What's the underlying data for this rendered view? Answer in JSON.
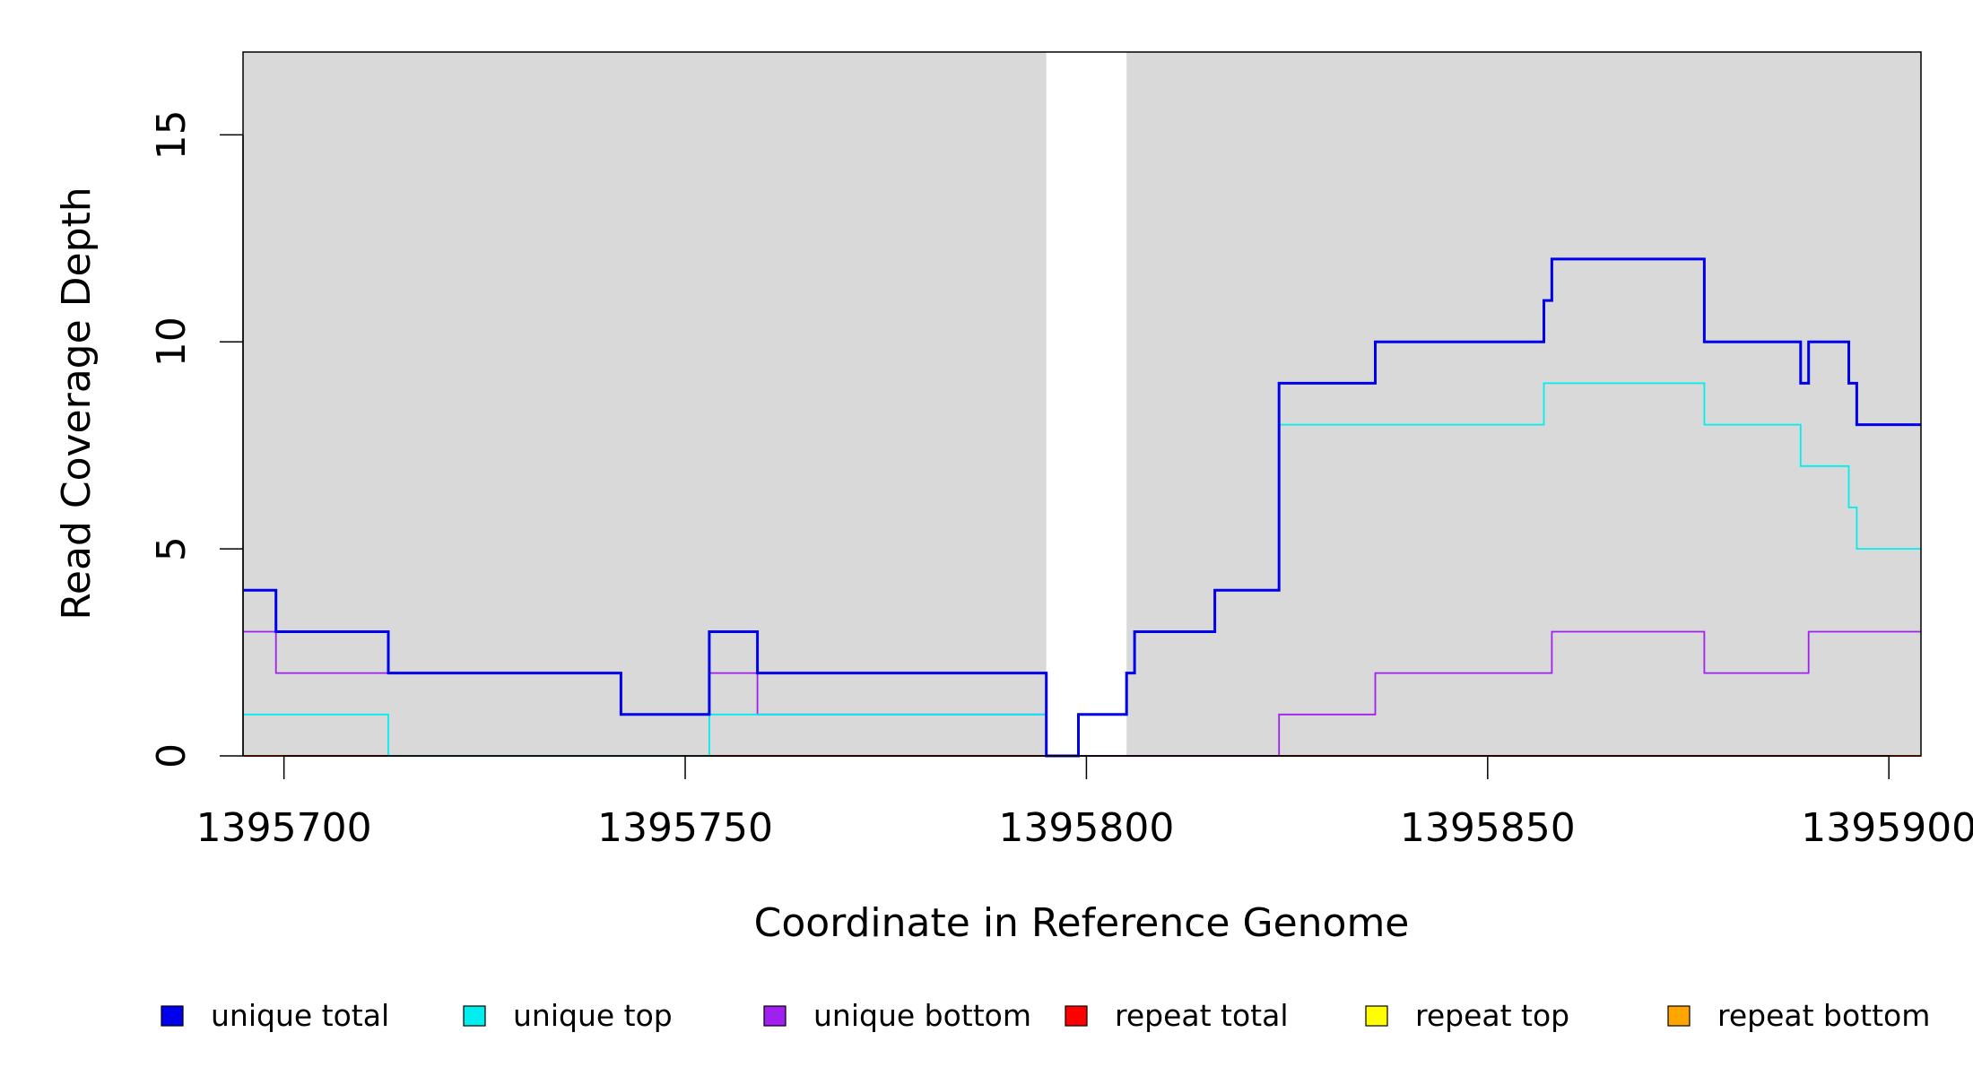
{
  "chart_data": {
    "type": "line",
    "step": true,
    "xlabel": "Coordinate in Reference Genome",
    "ylabel": "Read Coverage Depth",
    "xlim": [
      1395694.9,
      1395904
    ],
    "ylim": [
      0,
      17
    ],
    "x_ticks": [
      1395700,
      1395750,
      1395800,
      1395850,
      1395900
    ],
    "y_ticks": [
      0,
      5,
      10,
      15
    ],
    "grid": false,
    "background_color": "#d9d9d9",
    "unshaded_region": {
      "x_start": 1395795,
      "x_end": 1395805
    },
    "legend_position": "bottom",
    "series": [
      {
        "name": "unique total",
        "color": "#0000ee",
        "width": 3,
        "points": [
          [
            1395695,
            4
          ],
          [
            1395699,
            3
          ],
          [
            1395713,
            2
          ],
          [
            1395742,
            1
          ],
          [
            1395753,
            3
          ],
          [
            1395759,
            2
          ],
          [
            1395795,
            0
          ],
          [
            1395799,
            1
          ],
          [
            1395805,
            2
          ],
          [
            1395806,
            3
          ],
          [
            1395816,
            4
          ],
          [
            1395824,
            9
          ],
          [
            1395836,
            10
          ],
          [
            1395857,
            11
          ],
          [
            1395858,
            12
          ],
          [
            1395877,
            10
          ],
          [
            1395889,
            9
          ],
          [
            1395890,
            10
          ],
          [
            1395895,
            9
          ],
          [
            1395896,
            8
          ],
          [
            1395904,
            8
          ]
        ]
      },
      {
        "name": "unique top",
        "color": "#00eeee",
        "width": 1.8,
        "points": [
          [
            1395695,
            1
          ],
          [
            1395713,
            0
          ],
          [
            1395753,
            1
          ],
          [
            1395795,
            0
          ],
          [
            1395799,
            1
          ],
          [
            1395805,
            2
          ],
          [
            1395806,
            3
          ],
          [
            1395816,
            4
          ],
          [
            1395824,
            8
          ],
          [
            1395857,
            9
          ],
          [
            1395877,
            8
          ],
          [
            1395889,
            7
          ],
          [
            1395895,
            6
          ],
          [
            1395896,
            5
          ],
          [
            1395904,
            5
          ]
        ]
      },
      {
        "name": "unique bottom",
        "color": "#a020f0",
        "width": 1.8,
        "points": [
          [
            1395695,
            3
          ],
          [
            1395699,
            2
          ],
          [
            1395742,
            1
          ],
          [
            1395753,
            2
          ],
          [
            1395759,
            1
          ],
          [
            1395795,
            0
          ],
          [
            1395824,
            1
          ],
          [
            1395836,
            2
          ],
          [
            1395858,
            3
          ],
          [
            1395877,
            2
          ],
          [
            1395890,
            3
          ],
          [
            1395904,
            3
          ]
        ]
      },
      {
        "name": "repeat total",
        "color": "#ff0000",
        "width": 1.8,
        "points": [
          [
            1395695,
            0
          ],
          [
            1395904,
            0
          ]
        ]
      },
      {
        "name": "repeat top",
        "color": "#ffff00",
        "width": 1.8,
        "points": [
          [
            1395695,
            0
          ],
          [
            1395904,
            0
          ]
        ]
      },
      {
        "name": "repeat bottom",
        "color": "#ffa500",
        "width": 1.8,
        "points": [
          [
            1395695,
            0
          ],
          [
            1395904,
            0
          ]
        ]
      }
    ]
  }
}
